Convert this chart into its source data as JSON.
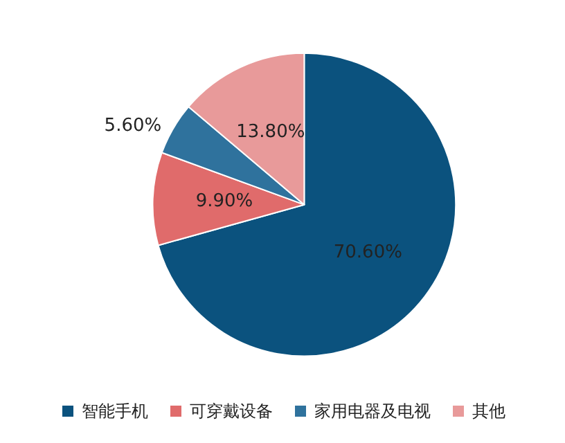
{
  "chart_data": {
    "type": "pie",
    "categories": [
      "智能手机",
      "可穿戴设备",
      "家用电器及电视",
      "其他"
    ],
    "values": [
      70.6,
      9.9,
      5.6,
      13.8
    ],
    "colors": [
      "#0b527e",
      "#e06b6b",
      "#2f729d",
      "#e89a9a"
    ],
    "value_labels": [
      "70.60%",
      "9.90%",
      "5.60%",
      "13.80%"
    ],
    "legend": "bottom"
  }
}
